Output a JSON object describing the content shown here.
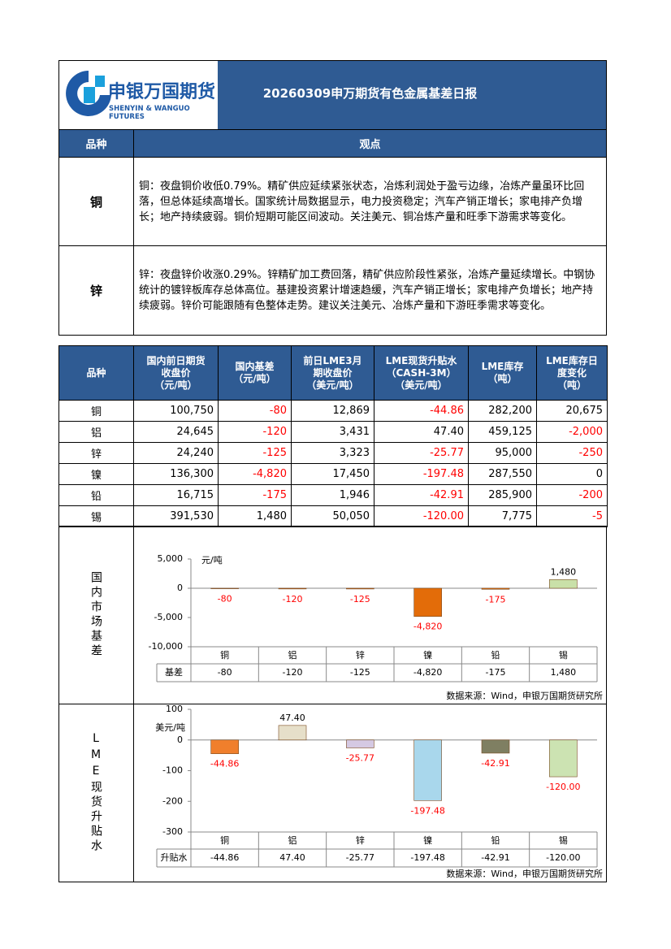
{
  "header": {
    "logo_cn": "申银万国期货",
    "logo_en": "SHENYIN & WANGUO FUTURES",
    "title": "20260309申万期货有色金属基差日报"
  },
  "views": {
    "columns": [
      "品种",
      "观点"
    ],
    "rows": [
      {
        "name": "铜",
        "text": "铜：夜盘铜价收低0.79%。精矿供应延续紧张状态，冶炼利润处于盈亏边缘，冶炼产量虽环比回落，但总体延续高增长。国家统计局数据显示，电力投资稳定；汽车产销正增长；家电排产负增长；地产持续疲弱。铜价短期可能区间波动。关注美元、铜冶炼产量和旺季下游需求等变化。"
      },
      {
        "name": "锌",
        "text": "锌：夜盘锌价收涨0.29%。锌精矿加工费回落，精矿供应阶段性紧张，冶炼产量延续增长。中钢协统计的镀锌板库存总体高位。基建投资累计增速趋缓，汽车产销正增长；家电排产负增长；地产持续疲弱。锌价可能跟随有色整体走势。建议关注美元、冶炼产量和下游旺季需求等变化。"
      }
    ]
  },
  "table": {
    "columns": [
      "品种",
      "国内前日期货\n收盘价\n（元/吨）",
      "国内基差\n（元/吨）",
      "前日LME3月\n期收盘价\n（美元/吨）",
      "LME现货升贴水\n（CASH-3M）\n（美元/吨）",
      "LME库存\n（吨）",
      "LME库存日\n度变化\n（吨）"
    ],
    "rows": [
      [
        "铜",
        "100,750",
        "-80",
        "12,869",
        "-44.86",
        "282,200",
        "20,675"
      ],
      [
        "铝",
        "24,645",
        "-120",
        "3,431",
        "47.40",
        "459,125",
        "-2,000"
      ],
      [
        "锌",
        "24,240",
        "-125",
        "3,323",
        "-25.77",
        "95,000",
        "-250"
      ],
      [
        "镍",
        "136,300",
        "-4,820",
        "17,450",
        "-197.48",
        "287,550",
        "0"
      ],
      [
        "铅",
        "16,715",
        "-175",
        "1,946",
        "-42.91",
        "285,900",
        "-200"
      ],
      [
        "锡",
        "391,530",
        "1,480",
        "50,050",
        "-120.00",
        "7,775",
        "-5"
      ]
    ],
    "negative_color": "#ff0000"
  },
  "chart_data": [
    {
      "type": "bar",
      "section": "国内市场基差",
      "y_label": "元/吨",
      "categories": [
        "铜",
        "铝",
        "锌",
        "镍",
        "铅",
        "锡"
      ],
      "values": [
        -80,
        -120,
        -125,
        -4820,
        -175,
        1480
      ],
      "value_labels": [
        "-80",
        "-120",
        "-125",
        "-4,820",
        "-175",
        "1,480"
      ],
      "colors": [
        "#e36c09",
        "#e36c09",
        "#e36c09",
        "#e36c09",
        "#e36c09",
        "#c9e0a8"
      ],
      "ylim": [
        -10000,
        5000
      ],
      "yticks": [
        {
          "value": -10000,
          "label": "-10,000"
        },
        {
          "value": -5000,
          "label": "-5,000"
        },
        0,
        {
          "value": 5000,
          "label": "5,000"
        }
      ],
      "table_label": "基差",
      "negative_label_color": "#ff0000",
      "source": "数据来源：Wind，申银万国期货研究所"
    },
    {
      "type": "bar",
      "section": "LME现货升贴水",
      "y_label": "美元/吨",
      "categories": [
        "铜",
        "铝",
        "锌",
        "镍",
        "铅",
        "锡"
      ],
      "values": [
        -44.86,
        47.4,
        -25.77,
        -197.48,
        -42.91,
        -120
      ],
      "value_labels": [
        "-44.86",
        "47.40",
        "-25.77",
        "-197.48",
        "-42.91",
        "-120.00"
      ],
      "colors": [
        "#f07f2c",
        "#e6dfc9",
        "#d5c9e3",
        "#a9d7ec",
        "#7f7f62",
        "#cce3b2"
      ],
      "ylim": [
        -300,
        100
      ],
      "yticks": [
        -300,
        -200,
        -100,
        0,
        100
      ],
      "table_label": "升贴水",
      "negative_label_color": "#ff0000",
      "source": "数据来源：Wind，申银万国期货研究所"
    }
  ]
}
